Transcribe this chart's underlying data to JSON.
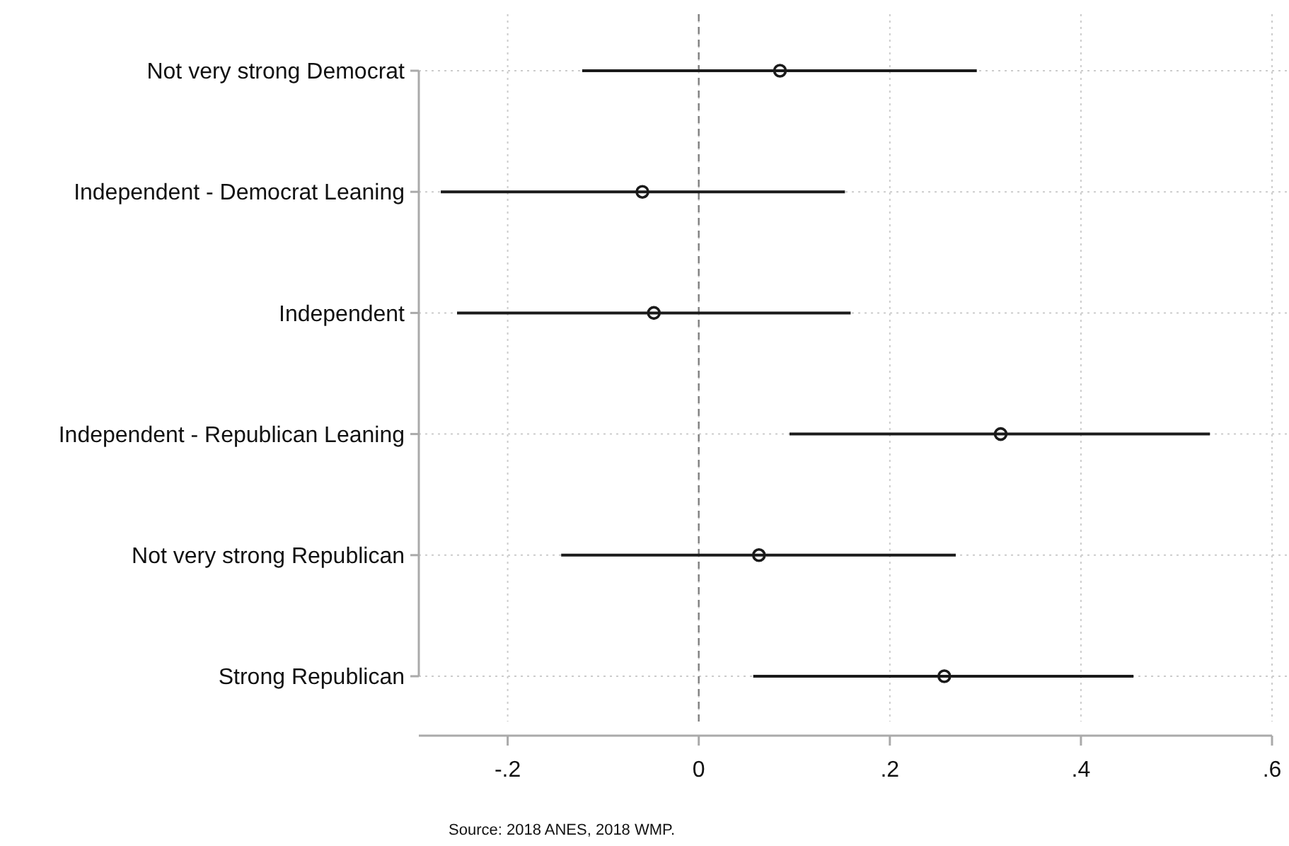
{
  "chart_data": {
    "type": "scatter",
    "orientation": "horizontal",
    "categories": [
      "Not very strong Democrat",
      "Independent - Democrat Leaning",
      "Independent",
      "Independent - Republican Leaning",
      "Not very strong Republican",
      "Strong Republican"
    ],
    "values": [
      0.085,
      -0.059,
      -0.047,
      0.316,
      0.063,
      0.257
    ],
    "errors": [
      [
        -0.122,
        0.291
      ],
      [
        -0.27,
        0.153
      ],
      [
        -0.253,
        0.159
      ],
      [
        0.095,
        0.535
      ],
      [
        -0.144,
        0.269
      ],
      [
        0.057,
        0.455
      ]
    ],
    "color": "#1a1a1a",
    "marker": "circle",
    "grid": true,
    "xlim": [
      -0.293,
      0.6
    ],
    "xticks": [
      {
        "value": -0.2,
        "label": "-.2"
      },
      0,
      {
        "value": 0.2,
        "label": ".2"
      },
      {
        "value": 0.4,
        "label": ".4"
      },
      {
        "value": 0.6,
        "label": ".6"
      }
    ],
    "ref_lines": [
      {
        "axis": "x",
        "value": 0,
        "color": "#808080",
        "line_style": "dashed"
      }
    ],
    "annotations": [
      "Source: 2018 ANES, 2018 WMP."
    ]
  }
}
